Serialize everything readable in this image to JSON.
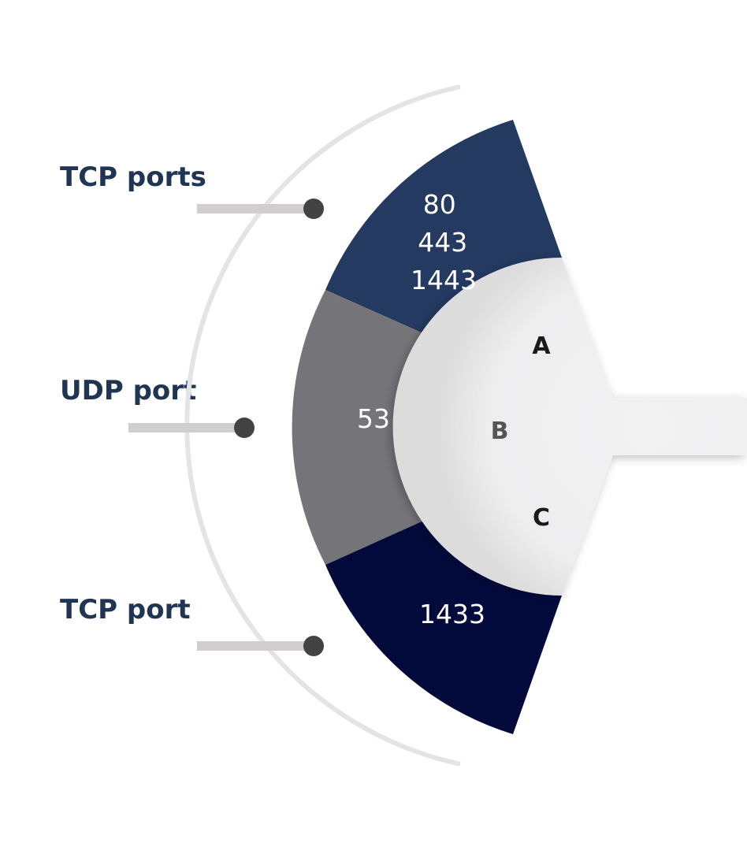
{
  "labels": {
    "top": "TCP ports",
    "middle": "UDP port",
    "bottom": "TCP port"
  },
  "segments": {
    "top": {
      "lines": [
        "80",
        "443",
        "1443"
      ],
      "color": "#243a61"
    },
    "middle": {
      "value": "53",
      "color": "#747479"
    },
    "bottom": {
      "value": "1433",
      "color": "#020a3c"
    }
  },
  "inner_letters": [
    "A",
    "B",
    "C"
  ],
  "colors": {
    "label_text": "#1f3552",
    "connector_bar": "#d2cdcf",
    "connector_dot": "#434343",
    "guide_arc": "#e4e4e4",
    "hub": "#eeeeef",
    "letter_dark": "#1a1a1a",
    "letter_mid": "#555555"
  }
}
